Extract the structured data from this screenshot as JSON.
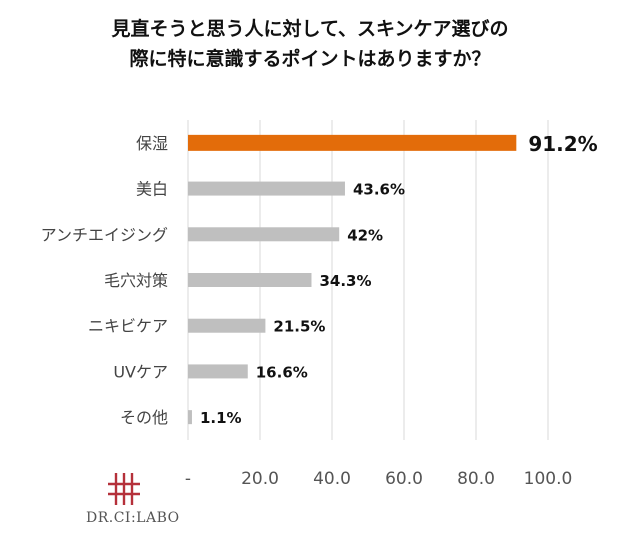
{
  "chart_data": {
    "type": "bar",
    "orientation": "horizontal",
    "title_lines": [
      "見直そうと思う人に対して、スキンケア選びの",
      "際に特に意識するポイントはありますか？"
    ],
    "categories": [
      "保湿",
      "美白",
      "アンチエイジング",
      "毛穴対策",
      "ニキビケア",
      "UVケア",
      "その他"
    ],
    "values": [
      91.2,
      43.6,
      42,
      34.3,
      21.5,
      16.6,
      1.1
    ],
    "value_labels": [
      "91.2%",
      "43.6%",
      "42%",
      "34.3%",
      "21.5%",
      "16.6%",
      "1.1%"
    ],
    "x_ticks": [
      0,
      20,
      40,
      60,
      80,
      100
    ],
    "x_tick_labels": [
      "-",
      "20.0",
      "40.0",
      "60.0",
      "80.0",
      "100.0"
    ],
    "xlim": [
      0,
      100
    ],
    "grid": true,
    "highlight_index": 0,
    "colors": {
      "highlight": "#E36C0A",
      "bar": "#BFBFBF",
      "grid": "#D9D9D9",
      "logo": "#B5303A"
    }
  },
  "brand": {
    "logo_text": "DR.CI:LABO"
  }
}
